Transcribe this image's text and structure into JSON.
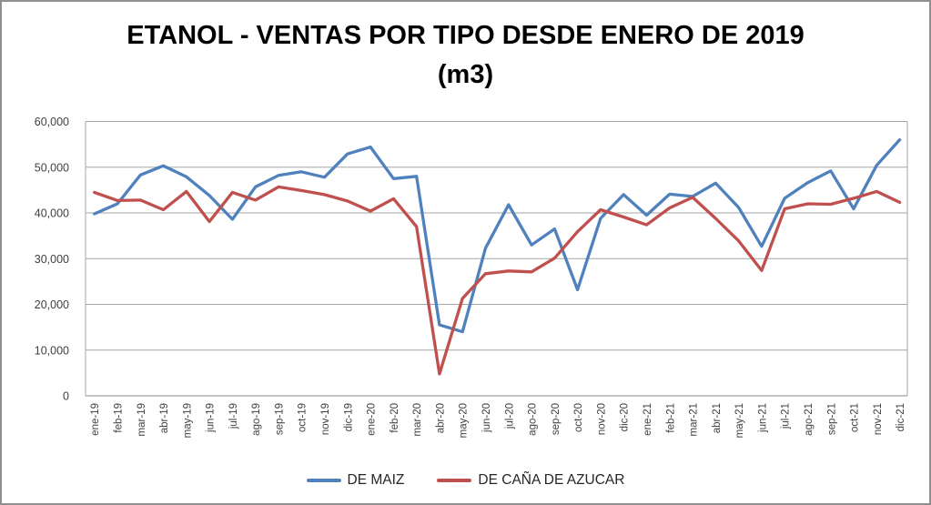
{
  "title": {
    "line1": "ETANOL - VENTAS POR TIPO DESDE ENERO DE 2019",
    "line2": "(m3)"
  },
  "colors": {
    "grid": "#a6a6a6",
    "axis": "#898989",
    "tick_label": "#404040",
    "title_text": "#000000",
    "frame_border": "#909090",
    "background": "#ffffff"
  },
  "chart_data": {
    "type": "line",
    "title": "ETANOL - VENTAS POR TIPO DESDE ENERO DE 2019 (m3)",
    "grid": true,
    "legend_position": "bottom",
    "ylim": [
      0,
      60000
    ],
    "ytick_interval": 10000,
    "ytick_labels": [
      "0",
      "10,000",
      "20,000",
      "30,000",
      "40,000",
      "50,000",
      "60,000"
    ],
    "categories": [
      "ene-19",
      "feb-19",
      "mar-19",
      "abr-19",
      "may-19",
      "jun-19",
      "jul-19",
      "ago-19",
      "sep-19",
      "oct-19",
      "nov-19",
      "dic-19",
      "ene-20",
      "feb-20",
      "mar-20",
      "abr-20",
      "may-20",
      "jun-20",
      "jul-20",
      "ago-20",
      "sep-20",
      "oct-20",
      "nov-20",
      "dic-20",
      "ene-21",
      "feb-21",
      "mar-21",
      "abr-21",
      "may-21",
      "jun-21",
      "jul-21",
      "ago-21",
      "sep-21",
      "oct-21",
      "nov-21",
      "dic-21"
    ],
    "series": [
      {
        "name": "DE MAIZ",
        "color": "#4F81BD",
        "values": [
          39800,
          42000,
          48300,
          50300,
          47900,
          43800,
          38600,
          45700,
          48200,
          49000,
          47800,
          52900,
          54400,
          47500,
          48000,
          15500,
          14000,
          32300,
          41800,
          33000,
          36500,
          23200,
          38800,
          44000,
          39500,
          44100,
          43600,
          46500,
          41200,
          32700,
          43200,
          46600,
          49200,
          40900,
          50400,
          56000
        ]
      },
      {
        "name": "DE CAÑA DE AZUCAR",
        "color": "#C0504D",
        "values": [
          44500,
          42700,
          42800,
          40700,
          44700,
          38100,
          44500,
          42800,
          45700,
          44900,
          44000,
          42600,
          40400,
          43100,
          37000,
          4800,
          21300,
          26700,
          27300,
          27100,
          30100,
          35900,
          40700,
          39100,
          37400,
          41100,
          43400,
          38800,
          33900,
          27400,
          40900,
          42000,
          41900,
          43200,
          44700,
          42300
        ]
      }
    ]
  }
}
